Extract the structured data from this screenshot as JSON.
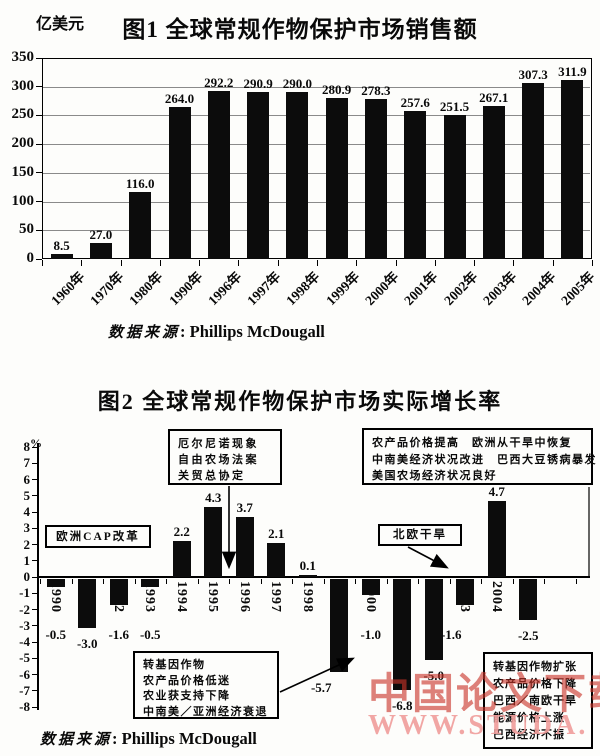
{
  "watermark": {
    "line1": "中国论文下载",
    "line2": "WWW.STUDA."
  },
  "chart_data": [
    {
      "type": "bar",
      "title": "图1  全球常规作物保护市场销售额",
      "ylabel": "亿美元",
      "xlabel": "",
      "categories": [
        "1960年",
        "1970年",
        "1980年",
        "1990年",
        "1996年",
        "1997年",
        "1998年",
        "1999年",
        "2000年",
        "2001年",
        "2002年",
        "2003年",
        "2004年",
        "2005年"
      ],
      "values": [
        8.5,
        27.0,
        116.0,
        264.0,
        292.2,
        290.9,
        290.0,
        280.9,
        278.3,
        257.6,
        251.5,
        267.1,
        307.3,
        311.9
      ],
      "ylim": [
        0,
        350
      ],
      "yticks": [
        0,
        50,
        100,
        150,
        200,
        250,
        300,
        350
      ],
      "grid": true,
      "bar_color": "#0c0c0c",
      "data_labels": true,
      "legend": "none",
      "source": {
        "label": "数据来源",
        "value": ": Phillips McDougall"
      }
    },
    {
      "type": "bar",
      "title": "图2  全球常规作物保护市场实际增长率",
      "ylabel": "%",
      "xlabel": "",
      "categories": [
        "1990",
        "1991",
        "1992",
        "1993",
        "1994",
        "1995",
        "1996",
        "1997",
        "1998",
        "1999",
        "2000",
        "2001",
        "2002",
        "2003",
        "2004",
        "2005"
      ],
      "values": [
        -0.5,
        -3.0,
        -1.6,
        -0.5,
        2.2,
        4.3,
        3.7,
        2.1,
        0.1,
        -5.7,
        -1.0,
        -6.8,
        -5.0,
        -1.6,
        4.7,
        -2.5
      ],
      "ylim": [
        -8,
        8
      ],
      "yticks": [
        8,
        7,
        6,
        5,
        4,
        3,
        2,
        1,
        0,
        -1,
        -2,
        -3,
        -4,
        -5,
        -6,
        -7,
        -8
      ],
      "grid": false,
      "bar_color": "#0c0c0c",
      "data_labels": true,
      "legend": "none",
      "annotations": {
        "cap": {
          "lines": [
            "欧洲CAP改革"
          ]
        },
        "elnino": {
          "lines": [
            "厄尔尼诺现象",
            "自由农场法案",
            "关贸总协定"
          ]
        },
        "recovery": {
          "lines": [
            "农产品价格提高　欧洲从干旱中恢复",
            "中南美经济状况改进　巴西大豆锈病暴发",
            "美国农场经济状况良好"
          ]
        },
        "drought": {
          "lines": [
            "北欧干旱"
          ]
        },
        "gm": {
          "lines": [
            "转基因作物",
            "农产品价格低迷",
            "农业获支持下降",
            "中南美／亚洲经济衰退"
          ]
        },
        "expansion": {
          "lines": [
            "转基因作物扩张",
            "农产品价格下降",
            "巴西／南欧干旱",
            "能源价格上涨",
            "巴西经济不振"
          ]
        }
      },
      "source": {
        "label": "数据来源",
        "value": ": Phillips McDougall"
      }
    }
  ]
}
